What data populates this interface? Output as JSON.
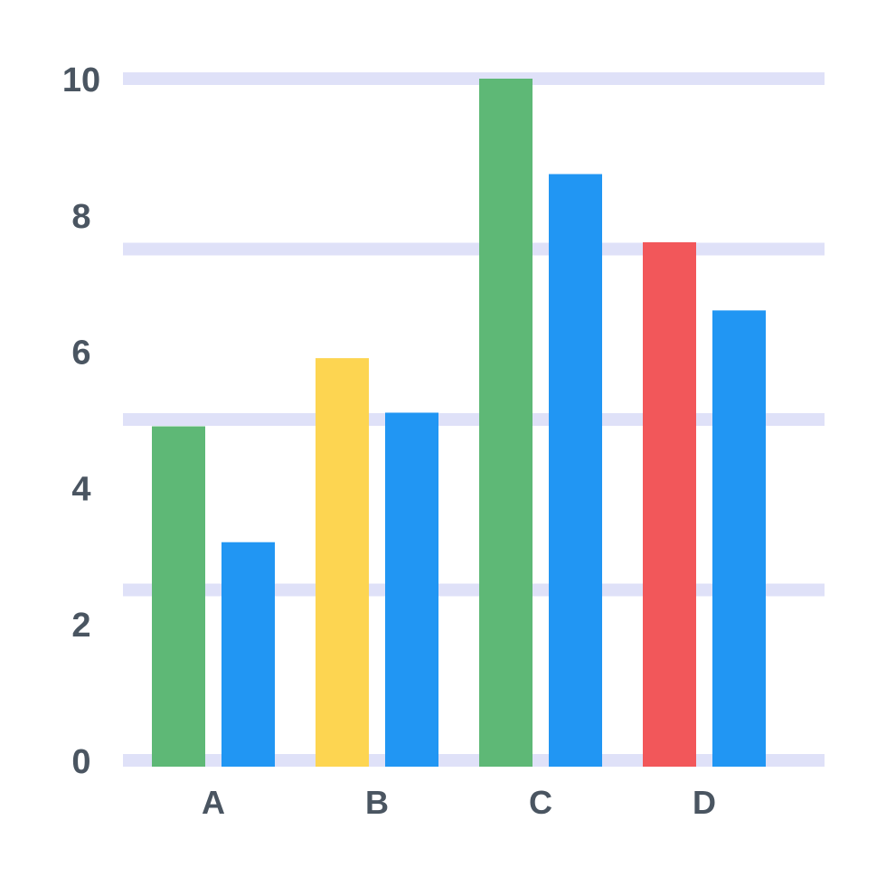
{
  "chart_data": {
    "type": "bar",
    "title": "",
    "xlabel": "",
    "ylabel": "",
    "categories": [
      "A",
      "B",
      "C",
      "D"
    ],
    "y_ticks": [
      "0",
      "2",
      "4",
      "6",
      "8",
      "10"
    ],
    "series": [
      {
        "values": [
          4.9,
          5.9,
          10.0,
          7.6
        ],
        "colors": [
          "#5eb876",
          "#fdd551",
          "#5eb876",
          "#f2575a"
        ]
      },
      {
        "values": [
          3.2,
          5.1,
          8.6,
          6.6
        ],
        "colors": [
          "#2196f3",
          "#2196f3",
          "#2196f3",
          "#2196f3"
        ]
      }
    ],
    "gridline_color": "#dfe1f8",
    "grid": true,
    "legend": "none"
  }
}
